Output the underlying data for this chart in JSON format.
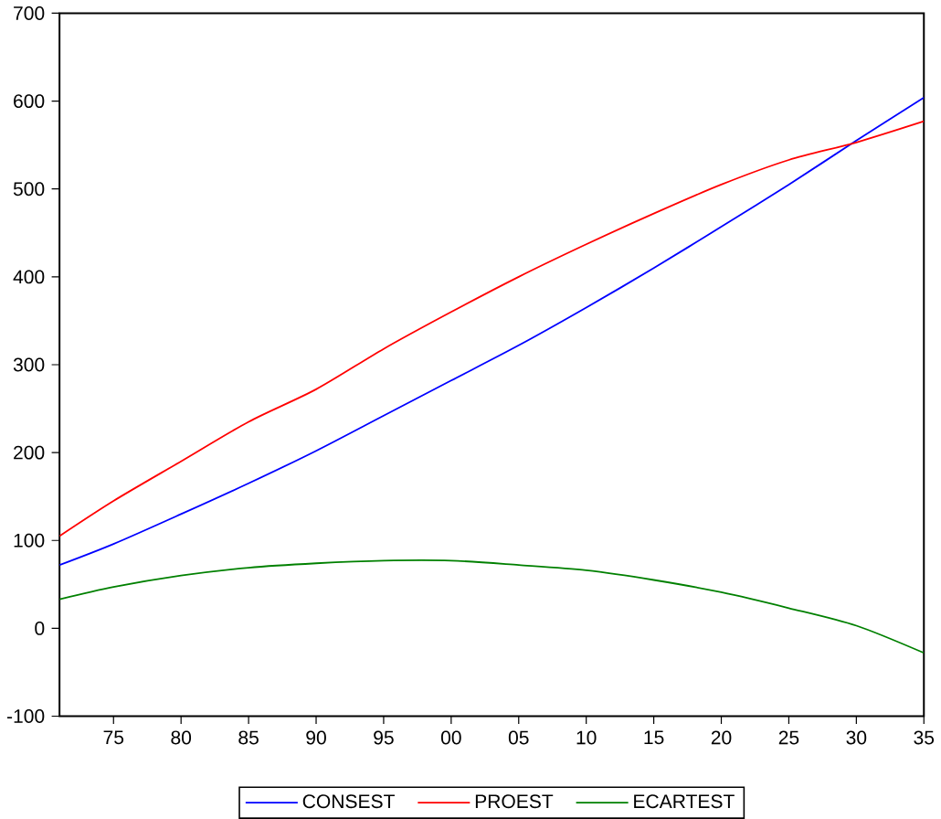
{
  "chart_data": {
    "type": "line",
    "x": [
      1971,
      1975,
      1980,
      1985,
      1990,
      1995,
      2000,
      2005,
      2010,
      2015,
      2020,
      2025,
      2030,
      2035
    ],
    "series": [
      {
        "name": "CONSEST",
        "color": "#0000ff",
        "values": [
          72,
          96,
          130,
          165,
          202,
          242,
          282,
          322,
          365,
          410,
          457,
          505,
          555,
          604
        ]
      },
      {
        "name": "PROEST",
        "color": "#ff0000",
        "values": [
          105,
          145,
          190,
          235,
          272,
          318,
          360,
          400,
          437,
          472,
          505,
          533,
          553,
          577
        ]
      },
      {
        "name": "ECARTEST",
        "color": "#008000",
        "values": [
          33,
          47,
          60,
          69,
          74,
          77,
          77,
          72,
          66,
          55,
          41,
          23,
          3,
          -28
        ]
      }
    ],
    "xlim": [
      1971,
      2035
    ],
    "xticks": [
      {
        "value": 1975,
        "label": "75"
      },
      {
        "value": 1980,
        "label": "80"
      },
      {
        "value": 1985,
        "label": "85"
      },
      {
        "value": 1990,
        "label": "90"
      },
      {
        "value": 1995,
        "label": "95"
      },
      {
        "value": 2000,
        "label": "00"
      },
      {
        "value": 2005,
        "label": "05"
      },
      {
        "value": 2010,
        "label": "10"
      },
      {
        "value": 2015,
        "label": "15"
      },
      {
        "value": 2020,
        "label": "20"
      },
      {
        "value": 2025,
        "label": "25"
      },
      {
        "value": 2030,
        "label": "30"
      },
      {
        "value": 2035,
        "label": "35"
      }
    ],
    "ylim": [
      -100,
      700
    ],
    "yticks": [
      -100,
      0,
      100,
      200,
      300,
      400,
      500,
      600,
      700
    ],
    "grid": false,
    "legend": "bottom",
    "marker": "none",
    "line_style": "solid"
  }
}
